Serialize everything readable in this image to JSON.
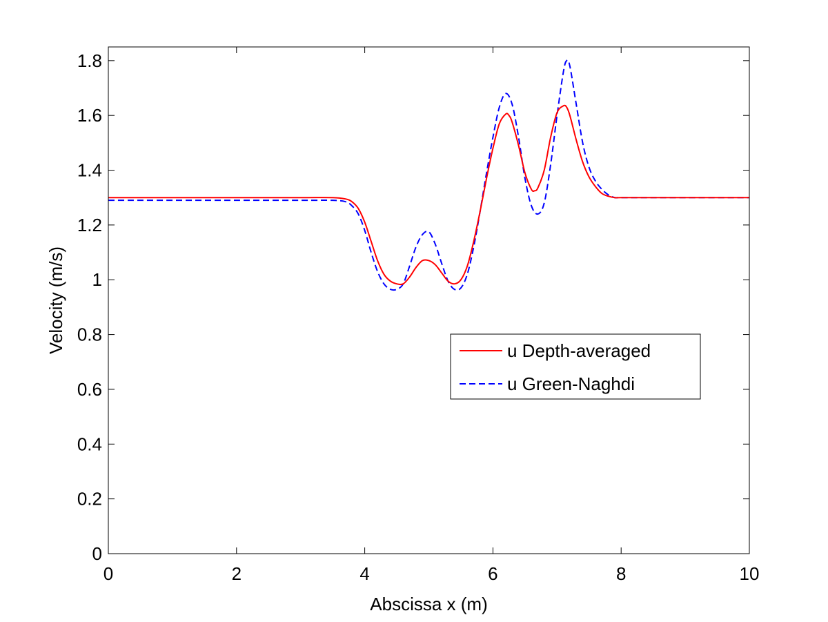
{
  "chart_data": {
    "type": "line",
    "title": "",
    "xlabel": "Abscissa x (m)",
    "ylabel": "Velocity (m/s)",
    "xlim": [
      0,
      10
    ],
    "ylim": [
      0,
      1.85
    ],
    "xticks": [
      0,
      2,
      4,
      6,
      8,
      10
    ],
    "xtick_labels": [
      "0",
      "2",
      "4",
      "6",
      "8",
      "10"
    ],
    "yticks": [
      0,
      0.2,
      0.4,
      0.6,
      0.8,
      1.0,
      1.2,
      1.4,
      1.6,
      1.8
    ],
    "ytick_labels": [
      "0",
      "0.2",
      "0.4",
      "0.6",
      "0.8",
      "1",
      "1.2",
      "1.4",
      "1.6",
      "1.8"
    ],
    "grid": false,
    "legend_position": "right-center",
    "series": [
      {
        "name": "u Depth-averaged",
        "color": "#ff0000",
        "style": "solid",
        "x": [
          0,
          1,
          2,
          3,
          3.5,
          3.7,
          3.8,
          3.9,
          4.0,
          4.1,
          4.2,
          4.3,
          4.4,
          4.5,
          4.6,
          4.7,
          4.8,
          4.9,
          5.0,
          5.1,
          5.2,
          5.3,
          5.4,
          5.5,
          5.6,
          5.7,
          5.8,
          5.9,
          6.0,
          6.1,
          6.2,
          6.25,
          6.3,
          6.4,
          6.5,
          6.6,
          6.65,
          6.7,
          6.8,
          6.9,
          7.0,
          7.1,
          7.15,
          7.2,
          7.3,
          7.4,
          7.5,
          7.6,
          7.7,
          7.8,
          7.9,
          8.0,
          8.5,
          9,
          10
        ],
        "y": [
          1.3,
          1.3,
          1.3,
          1.3,
          1.3,
          1.295,
          1.285,
          1.26,
          1.21,
          1.14,
          1.07,
          1.02,
          0.995,
          0.985,
          0.985,
          1.01,
          1.045,
          1.07,
          1.07,
          1.055,
          1.025,
          0.995,
          0.985,
          1.0,
          1.05,
          1.14,
          1.25,
          1.37,
          1.48,
          1.57,
          1.605,
          1.6,
          1.575,
          1.49,
          1.39,
          1.33,
          1.325,
          1.335,
          1.4,
          1.52,
          1.61,
          1.635,
          1.63,
          1.6,
          1.51,
          1.43,
          1.375,
          1.34,
          1.315,
          1.305,
          1.3,
          1.3,
          1.3,
          1.3,
          1.3
        ]
      },
      {
        "name": "u Green-Naghdi",
        "color": "#0000ff",
        "style": "dashed",
        "x": [
          0,
          1,
          2,
          3,
          3.5,
          3.7,
          3.8,
          3.9,
          4.0,
          4.1,
          4.2,
          4.3,
          4.4,
          4.5,
          4.6,
          4.7,
          4.8,
          4.9,
          5.0,
          5.1,
          5.2,
          5.3,
          5.4,
          5.5,
          5.6,
          5.7,
          5.8,
          5.9,
          6.0,
          6.1,
          6.2,
          6.3,
          6.4,
          6.5,
          6.6,
          6.7,
          6.8,
          6.9,
          7.0,
          7.1,
          7.15,
          7.2,
          7.3,
          7.4,
          7.5,
          7.6,
          7.7,
          7.8,
          7.9,
          8.0,
          8.5,
          9,
          10
        ],
        "y": [
          1.29,
          1.29,
          1.29,
          1.29,
          1.29,
          1.285,
          1.27,
          1.24,
          1.18,
          1.1,
          1.03,
          0.985,
          0.965,
          0.965,
          0.985,
          1.05,
          1.12,
          1.165,
          1.175,
          1.13,
          1.06,
          0.995,
          0.965,
          0.97,
          1.02,
          1.12,
          1.25,
          1.39,
          1.52,
          1.63,
          1.68,
          1.64,
          1.52,
          1.37,
          1.27,
          1.24,
          1.28,
          1.42,
          1.6,
          1.76,
          1.8,
          1.78,
          1.64,
          1.5,
          1.41,
          1.36,
          1.33,
          1.31,
          1.3,
          1.3,
          1.3,
          1.3,
          1.3
        ]
      }
    ]
  }
}
